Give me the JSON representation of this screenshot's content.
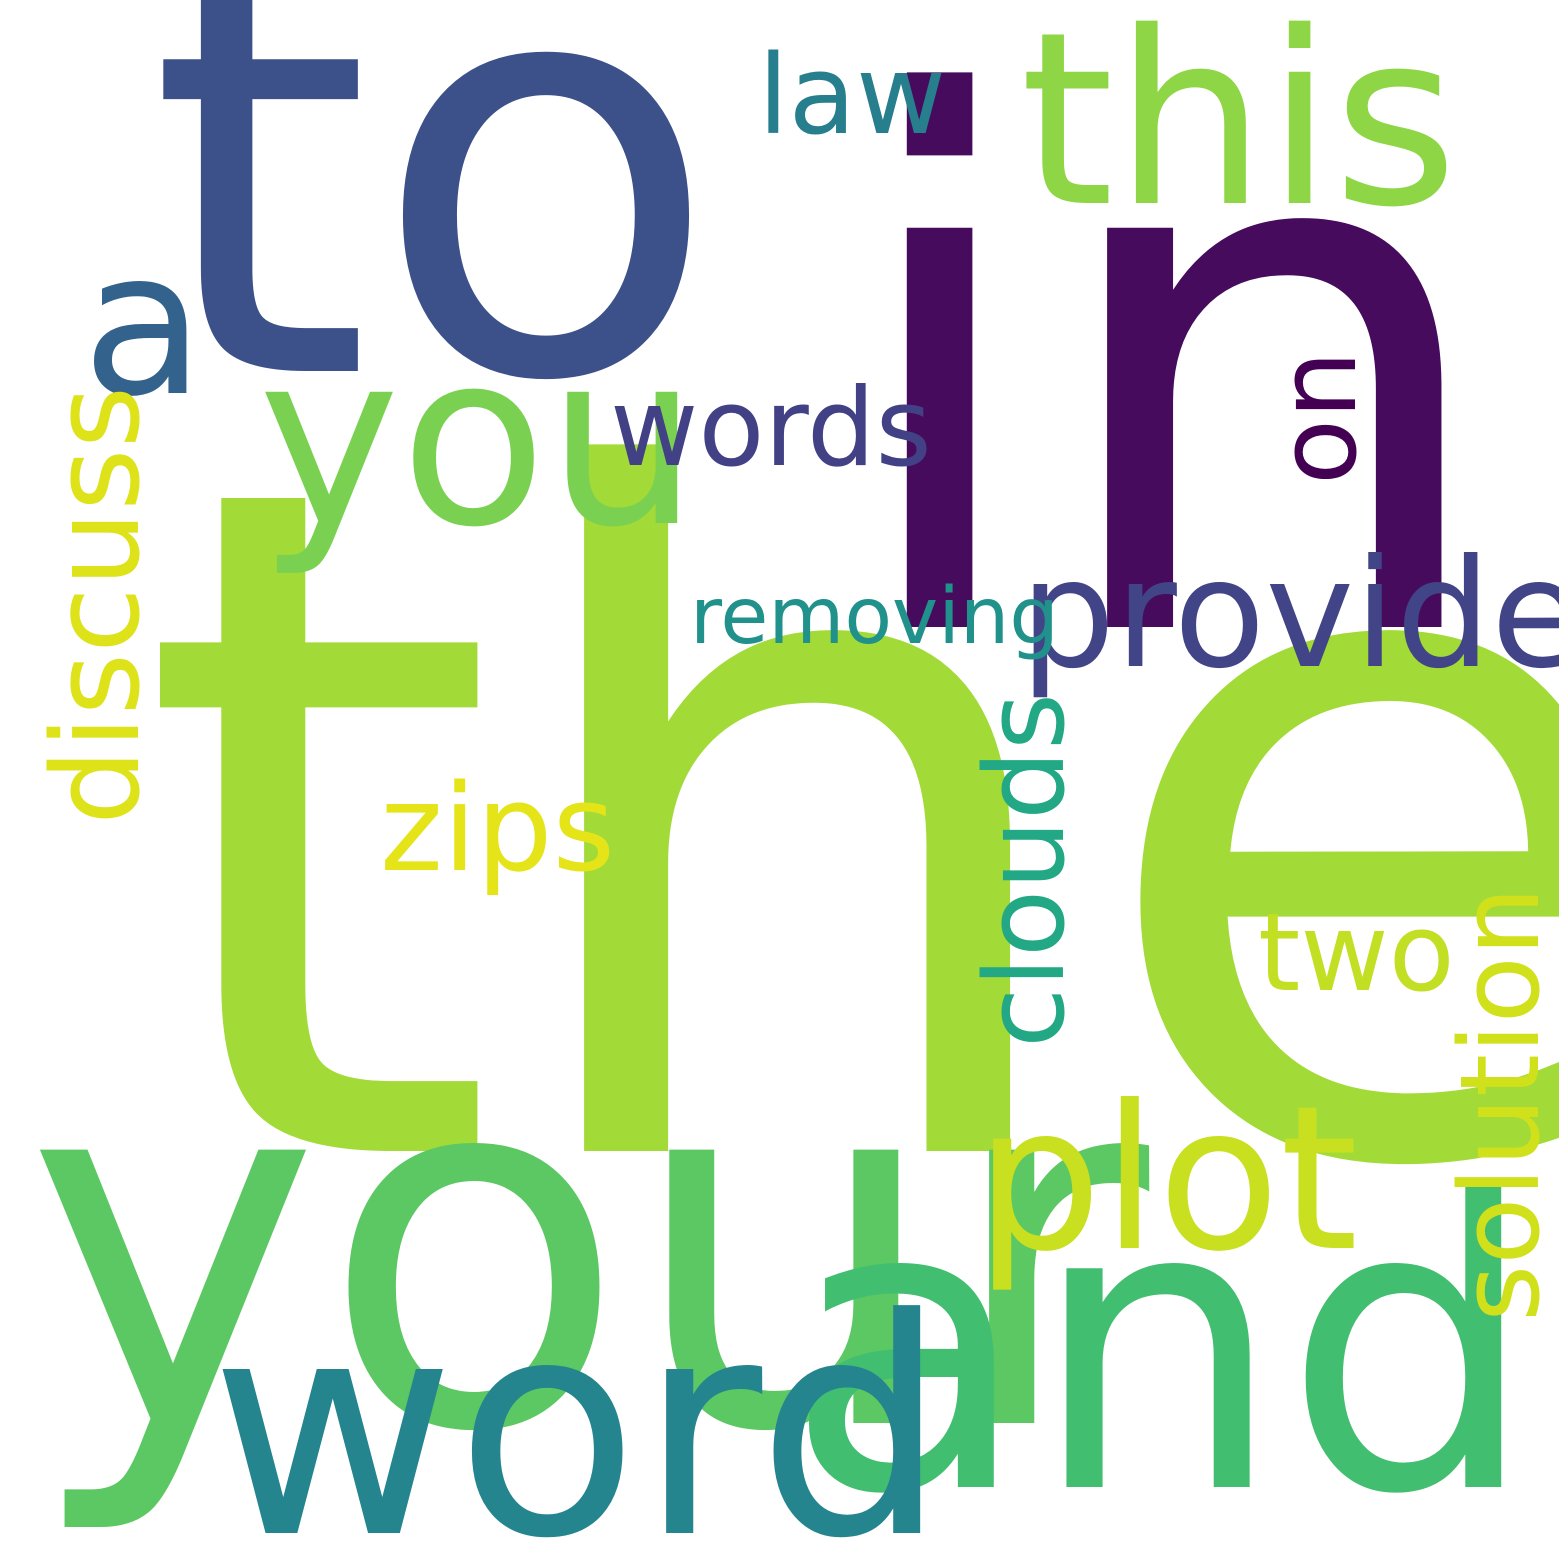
{
  "words": {
    "the": {
      "text": "the",
      "color": "#a2da37"
    },
    "to": {
      "text": "to",
      "color": "#3c5089"
    },
    "in": {
      "text": "in",
      "color": "#460b5c"
    },
    "this": {
      "text": "this",
      "color": "#8ed645"
    },
    "your": {
      "text": "your",
      "color": "#5cc863"
    },
    "and": {
      "text": "and",
      "color": "#42be71"
    },
    "word": {
      "text": "word",
      "color": "#25858e"
    },
    "a": {
      "text": "a",
      "color": "#33638d"
    },
    "law": {
      "text": "law",
      "color": "#277f8e"
    },
    "you": {
      "text": "you",
      "color": "#7ad151"
    },
    "words": {
      "text": "words",
      "color": "#424186"
    },
    "on": {
      "text": "on",
      "color": "#440154"
    },
    "provide": {
      "text": "provide",
      "color": "#414487"
    },
    "removing": {
      "text": "removing",
      "color": "#21918c"
    },
    "discuss": {
      "text": "discuss",
      "color": "#dde318"
    },
    "zips": {
      "text": "zips",
      "color": "#e5e419"
    },
    "clouds": {
      "text": "clouds",
      "color": "#22a884"
    },
    "two": {
      "text": "two",
      "color": "#c2df23"
    },
    "plot": {
      "text": "plot",
      "color": "#c8e020"
    },
    "solution": {
      "text": "solution",
      "color": "#d0e11c"
    }
  }
}
